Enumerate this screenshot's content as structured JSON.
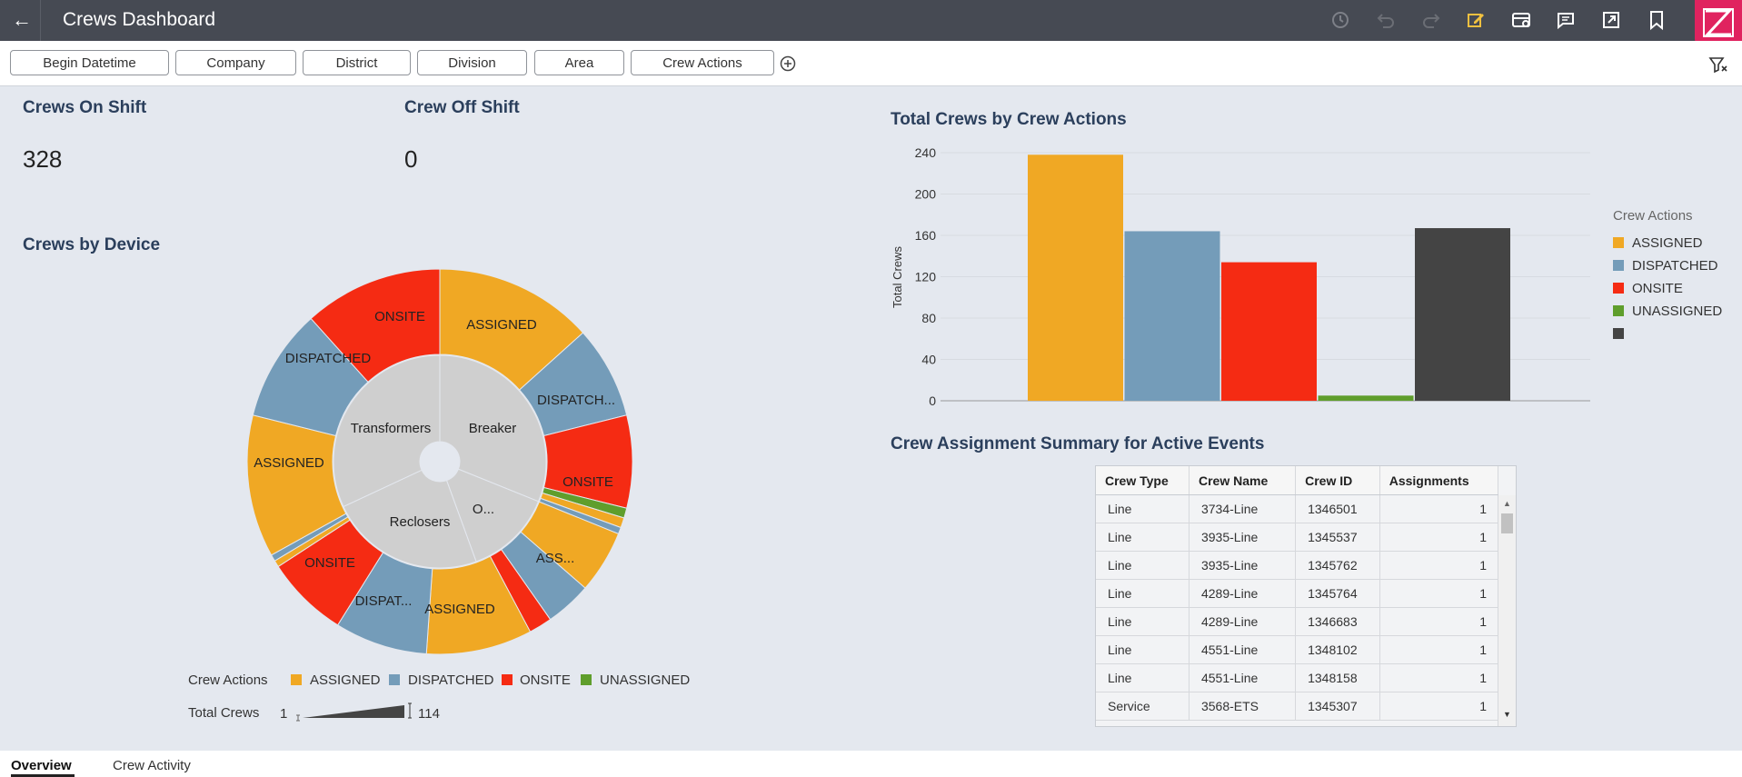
{
  "header": {
    "title": "Crews Dashboard"
  },
  "filters": [
    "Begin Datetime",
    "Company",
    "District",
    "Division",
    "Area",
    "Crew Actions"
  ],
  "kpis": {
    "on_shift_label": "Crews On Shift",
    "on_shift_value": "328",
    "off_shift_label": "Crew Off Shift",
    "off_shift_value": "0"
  },
  "colors": {
    "assigned": "#f0a824",
    "dispatched": "#749cb9",
    "onsite": "#f52b13",
    "unassigned": "#5f9e2c",
    "other": "#444444"
  },
  "sunburst": {
    "title": "Crews by Device",
    "inner_labels": [
      "Transformers",
      "Breaker",
      "Reclosers",
      "O..."
    ],
    "outer_labels": [
      "ASSIGNED",
      "DISPATCH...",
      "ONSITE",
      "ASS...",
      "ASSIGNED",
      "DISPAT...",
      "ONSITE",
      "ASSIGNED",
      "DISPATCHED",
      "ONSITE"
    ],
    "legend_title": "Crew Actions",
    "legend": [
      "ASSIGNED",
      "DISPATCHED",
      "ONSITE",
      "UNASSIGNED"
    ],
    "size_label": "Total Crews",
    "size_min": "1",
    "size_max": "114"
  },
  "bar": {
    "title": "Total Crews by Crew Actions",
    "legend_title": "Crew Actions",
    "legend": [
      "ASSIGNED",
      "DISPATCHED",
      "ONSITE",
      "UNASSIGNED",
      ""
    ]
  },
  "chart_data": {
    "type": "bar",
    "title": "Total Crews by Crew Actions",
    "ylabel": "Total Crews",
    "ylim": [
      0,
      240
    ],
    "yticks": [
      0,
      40,
      80,
      120,
      160,
      200,
      240
    ],
    "categories": [
      "ASSIGNED",
      "DISPATCHED",
      "ONSITE",
      "UNASSIGNED",
      ""
    ],
    "values": [
      238,
      164,
      134,
      5,
      167
    ],
    "grid": true,
    "legend_position": "right"
  },
  "table": {
    "title": "Crew Assignment Summary for Active Events",
    "columns": [
      "Crew Type",
      "Crew Name",
      "Crew ID",
      "Assignments"
    ],
    "rows": [
      [
        "Line",
        "3734-Line",
        "1346501",
        "1"
      ],
      [
        "Line",
        "3935-Line",
        "1345537",
        "1"
      ],
      [
        "Line",
        "3935-Line",
        "1345762",
        "1"
      ],
      [
        "Line",
        "4289-Line",
        "1345764",
        "1"
      ],
      [
        "Line",
        "4289-Line",
        "1346683",
        "1"
      ],
      [
        "Line",
        "4551-Line",
        "1348102",
        "1"
      ],
      [
        "Line",
        "4551-Line",
        "1348158",
        "1"
      ],
      [
        "Service",
        "3568-ETS",
        "1345307",
        "1"
      ]
    ]
  },
  "tabs": [
    "Overview",
    "Crew Activity"
  ]
}
